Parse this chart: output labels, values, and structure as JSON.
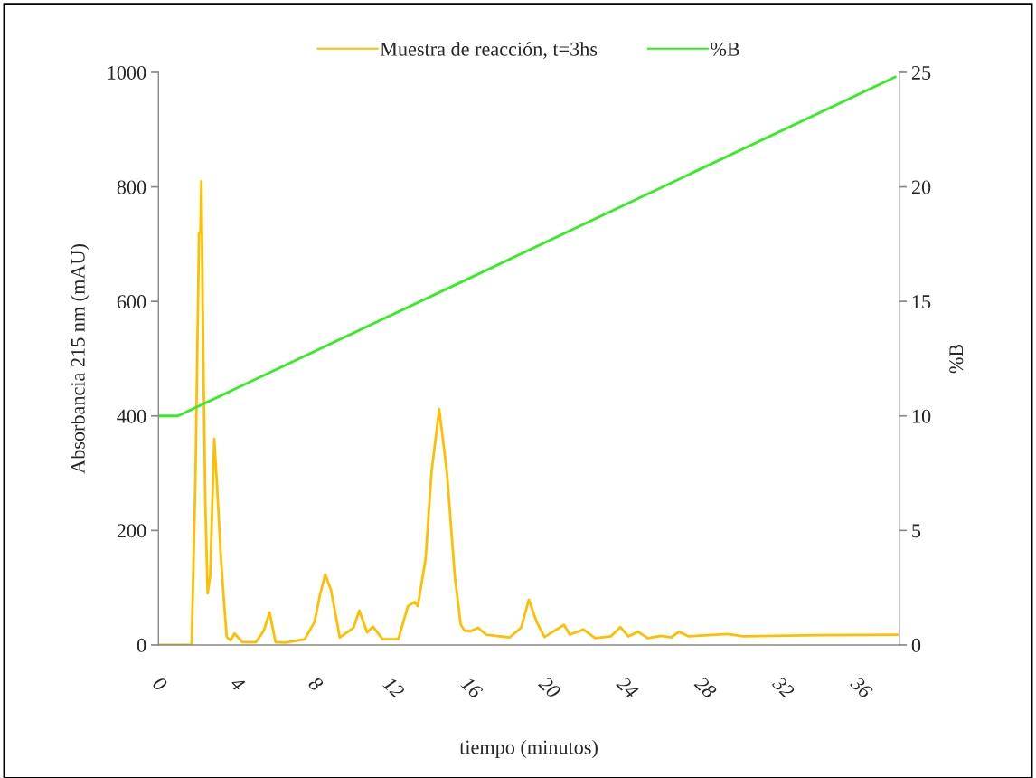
{
  "chart_data": {
    "type": "line",
    "xlabel": "tiempo (minutos)",
    "ylabel": "Absorbancia 215 nm (mAU)",
    "y2label": "%B",
    "xlim": [
      0,
      38
    ],
    "xticks": [
      0,
      4,
      8,
      12,
      16,
      20,
      24,
      28,
      32,
      36
    ],
    "ylim": [
      0,
      1000
    ],
    "yticks": [
      0,
      200,
      400,
      600,
      800,
      1000
    ],
    "y2lim": [
      0,
      25
    ],
    "y2ticks": [
      0,
      5,
      10,
      15,
      20,
      25
    ],
    "grid": false,
    "legend": "top",
    "marker": "none",
    "line_style": "solid",
    "series": [
      {
        "name": "Muestra de reacción, t=3hs",
        "color": "#ffbf00",
        "x": [
          0,
          1.7,
          1.9,
          2.08,
          2.15,
          2.2,
          2.3,
          2.4,
          2.52,
          2.65,
          2.86,
          3.0,
          3.2,
          3.35,
          3.5,
          3.7,
          3.9,
          4.3,
          5.0,
          5.4,
          5.7,
          6.0,
          6.5,
          7.5,
          8.0,
          8.3,
          8.55,
          8.85,
          9.3,
          9.8,
          10.0,
          10.3,
          10.7,
          11.0,
          11.5,
          12.3,
          12.8,
          13.15,
          13.3,
          13.7,
          14.0,
          14.4,
          14.8,
          15.2,
          15.5,
          15.7,
          16.0,
          16.4,
          16.8,
          18.0,
          18.6,
          19.0,
          19.4,
          19.8,
          20.8,
          21.1,
          21.8,
          22.4,
          23.2,
          23.7,
          24.1,
          24.6,
          25.1,
          25.8,
          26.3,
          26.7,
          27.2,
          28.2,
          29.2,
          30.0,
          34.0,
          38.0
        ],
        "values": [
          0,
          0,
          300,
          720,
          720,
          810,
          500,
          250,
          90,
          120,
          360,
          280,
          153,
          80,
          14,
          8,
          20,
          5,
          5,
          25,
          57,
          5,
          4,
          10,
          40,
          90,
          123,
          96,
          13,
          25,
          30,
          60,
          22,
          32,
          10,
          10,
          68,
          75,
          68,
          150,
          300,
          412,
          300,
          120,
          36,
          25,
          24,
          30,
          18,
          13,
          30,
          79,
          40,
          14,
          35,
          18,
          27,
          12,
          15,
          31,
          15,
          23,
          12,
          16,
          13,
          23,
          15,
          17,
          19,
          15,
          17,
          18
        ]
      },
      {
        "name": "%B",
        "color": "#33ee22",
        "axis": "y2",
        "x": [
          0,
          1.0,
          37.8
        ],
        "values": [
          10,
          10,
          24.8
        ]
      }
    ]
  }
}
